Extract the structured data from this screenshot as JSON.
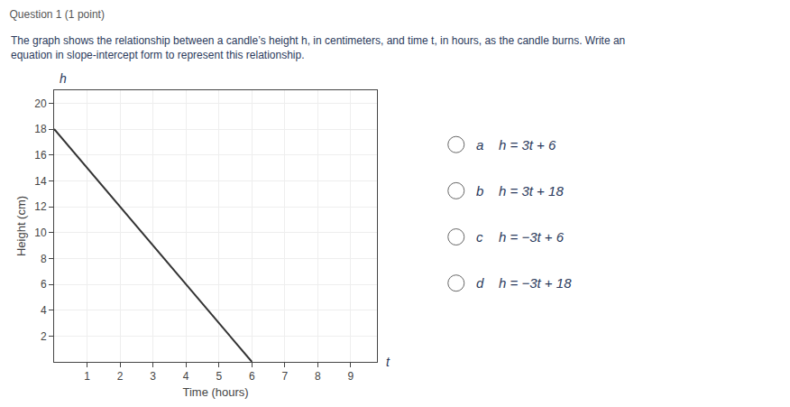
{
  "chart_data": {
    "type": "line",
    "title": "Question 1 (1 point)",
    "subtitle": [
      "The graph shows the relationship between a candle’s height h, in centimeters, and time t, in hours, as the candle burns. Write an",
      "equation in slope-intercept form to represent this relationship."
    ],
    "x_label": "Time (hours)",
    "y_label": "Height (cm)",
    "x": [
      0,
      6
    ],
    "series": [
      {
        "name": "h",
        "color": "#333333",
        "values": [
          18,
          0
        ]
      }
    ],
    "xlim": [
      0,
      9.8
    ],
    "ylim": [
      0,
      21
    ],
    "xticks": [
      1,
      2,
      3,
      4,
      5,
      6,
      7,
      8,
      9
    ],
    "yticks": [
      2,
      4,
      6,
      8,
      10,
      12,
      14,
      16,
      18,
      20
    ],
    "grid": true,
    "annotations": [
      "h",
      "t",
      "a",
      "h = 3t + 6",
      "b",
      "h = 3t + 18",
      "c",
      "h = −3t + 6",
      "d",
      "h = −3t + 18"
    ]
  }
}
